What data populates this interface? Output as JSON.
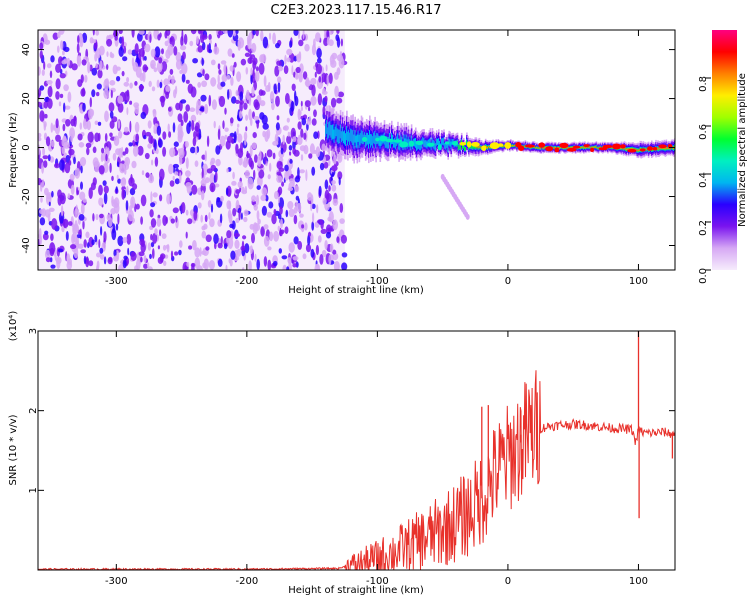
{
  "title": "C2E3.2023.117.15.46.R17",
  "chart_data": [
    {
      "type": "heatmap",
      "xlabel": "Height of straight line (km)",
      "ylabel": "Frequency (Hz)",
      "xlim": [
        -360,
        128
      ],
      "ylim": [
        -50,
        48
      ],
      "x_ticks": [
        -300,
        -200,
        -100,
        0,
        100
      ],
      "x_tick_labels": [
        "-300",
        "-200",
        "-100",
        "0",
        "100"
      ],
      "y_ticks": [
        -40,
        -20,
        0,
        20,
        40
      ],
      "y_tick_labels": [
        "-40",
        "-20",
        "0",
        "20",
        "40"
      ],
      "noise_region_x": [
        -360,
        -125
      ],
      "signal": {
        "x": [
          -140,
          -120,
          -100,
          -80,
          -60,
          -40,
          -20,
          0,
          20,
          40,
          60,
          80,
          100,
          128
        ],
        "center_hz": [
          7,
          4,
          3,
          2,
          1,
          1,
          0,
          1,
          0,
          0,
          0,
          0,
          -1,
          0
        ],
        "halfwidth_hz": [
          9,
          8,
          7,
          6,
          5,
          4,
          3,
          2,
          2,
          2,
          2,
          2,
          3,
          3
        ]
      },
      "streak": {
        "x": [
          -50,
          -30
        ],
        "y": [
          -12,
          -29
        ]
      },
      "colorbar": {
        "label": "Normalized spectral amplitude",
        "range": [
          0,
          1
        ],
        "ticks": [
          0.0,
          0.2,
          0.4,
          0.6,
          0.8
        ],
        "tick_labels": [
          "0.0",
          "0.2",
          "0.4",
          "0.6",
          "0.8"
        ],
        "colors": [
          "#f6ecfc",
          "#d6a8f4",
          "#7a14ef",
          "#2a00ff",
          "#00b6f0",
          "#00f0c0",
          "#00ff30",
          "#a0ff00",
          "#ffee00",
          "#ff8000",
          "#ff0000",
          "#ff0080"
        ]
      }
    },
    {
      "type": "line",
      "xlabel": "Height of straight line (km)",
      "ylabel": "SNR (10 * v/v)",
      "y_multiplier_label": "(x10⁴)",
      "xlim": [
        -360,
        128
      ],
      "ylim": [
        0,
        3
      ],
      "x_ticks": [
        -300,
        -200,
        -100,
        0,
        100
      ],
      "x_tick_labels": [
        "-300",
        "-200",
        "-100",
        "0",
        "100"
      ],
      "y_ticks": [
        1,
        2,
        3
      ],
      "y_tick_labels": [
        "1",
        "2",
        "3"
      ],
      "color": "#e8312b",
      "series": [
        {
          "x": [
            -360,
            -200,
            -130,
            -120,
            -110,
            -100,
            -90,
            -80,
            -70,
            -60,
            -50,
            -40,
            -30,
            -20,
            -10,
            0,
            10,
            20,
            30,
            40,
            50,
            60,
            70,
            80,
            90,
            95,
            98,
            100,
            102,
            105,
            110,
            120,
            128
          ],
          "y": [
            0.01,
            0.01,
            0.02,
            0.06,
            0.1,
            0.15,
            0.2,
            0.28,
            0.35,
            0.42,
            0.5,
            0.6,
            0.72,
            0.9,
            1.2,
            1.4,
            1.6,
            1.75,
            1.8,
            1.82,
            1.83,
            1.82,
            1.8,
            1.78,
            1.77,
            1.76,
            1.6,
            1.75,
            1.74,
            1.72,
            1.72,
            1.73,
            1.7
          ],
          "spikes": [
            [
              -20,
              2.05
            ],
            [
              -15,
              2.07
            ],
            [
              10,
              1.7
            ],
            [
              100,
              3.05
            ],
            [
              100.5,
              0.65
            ],
            [
              126,
              1.4
            ]
          ]
        }
      ]
    }
  ]
}
